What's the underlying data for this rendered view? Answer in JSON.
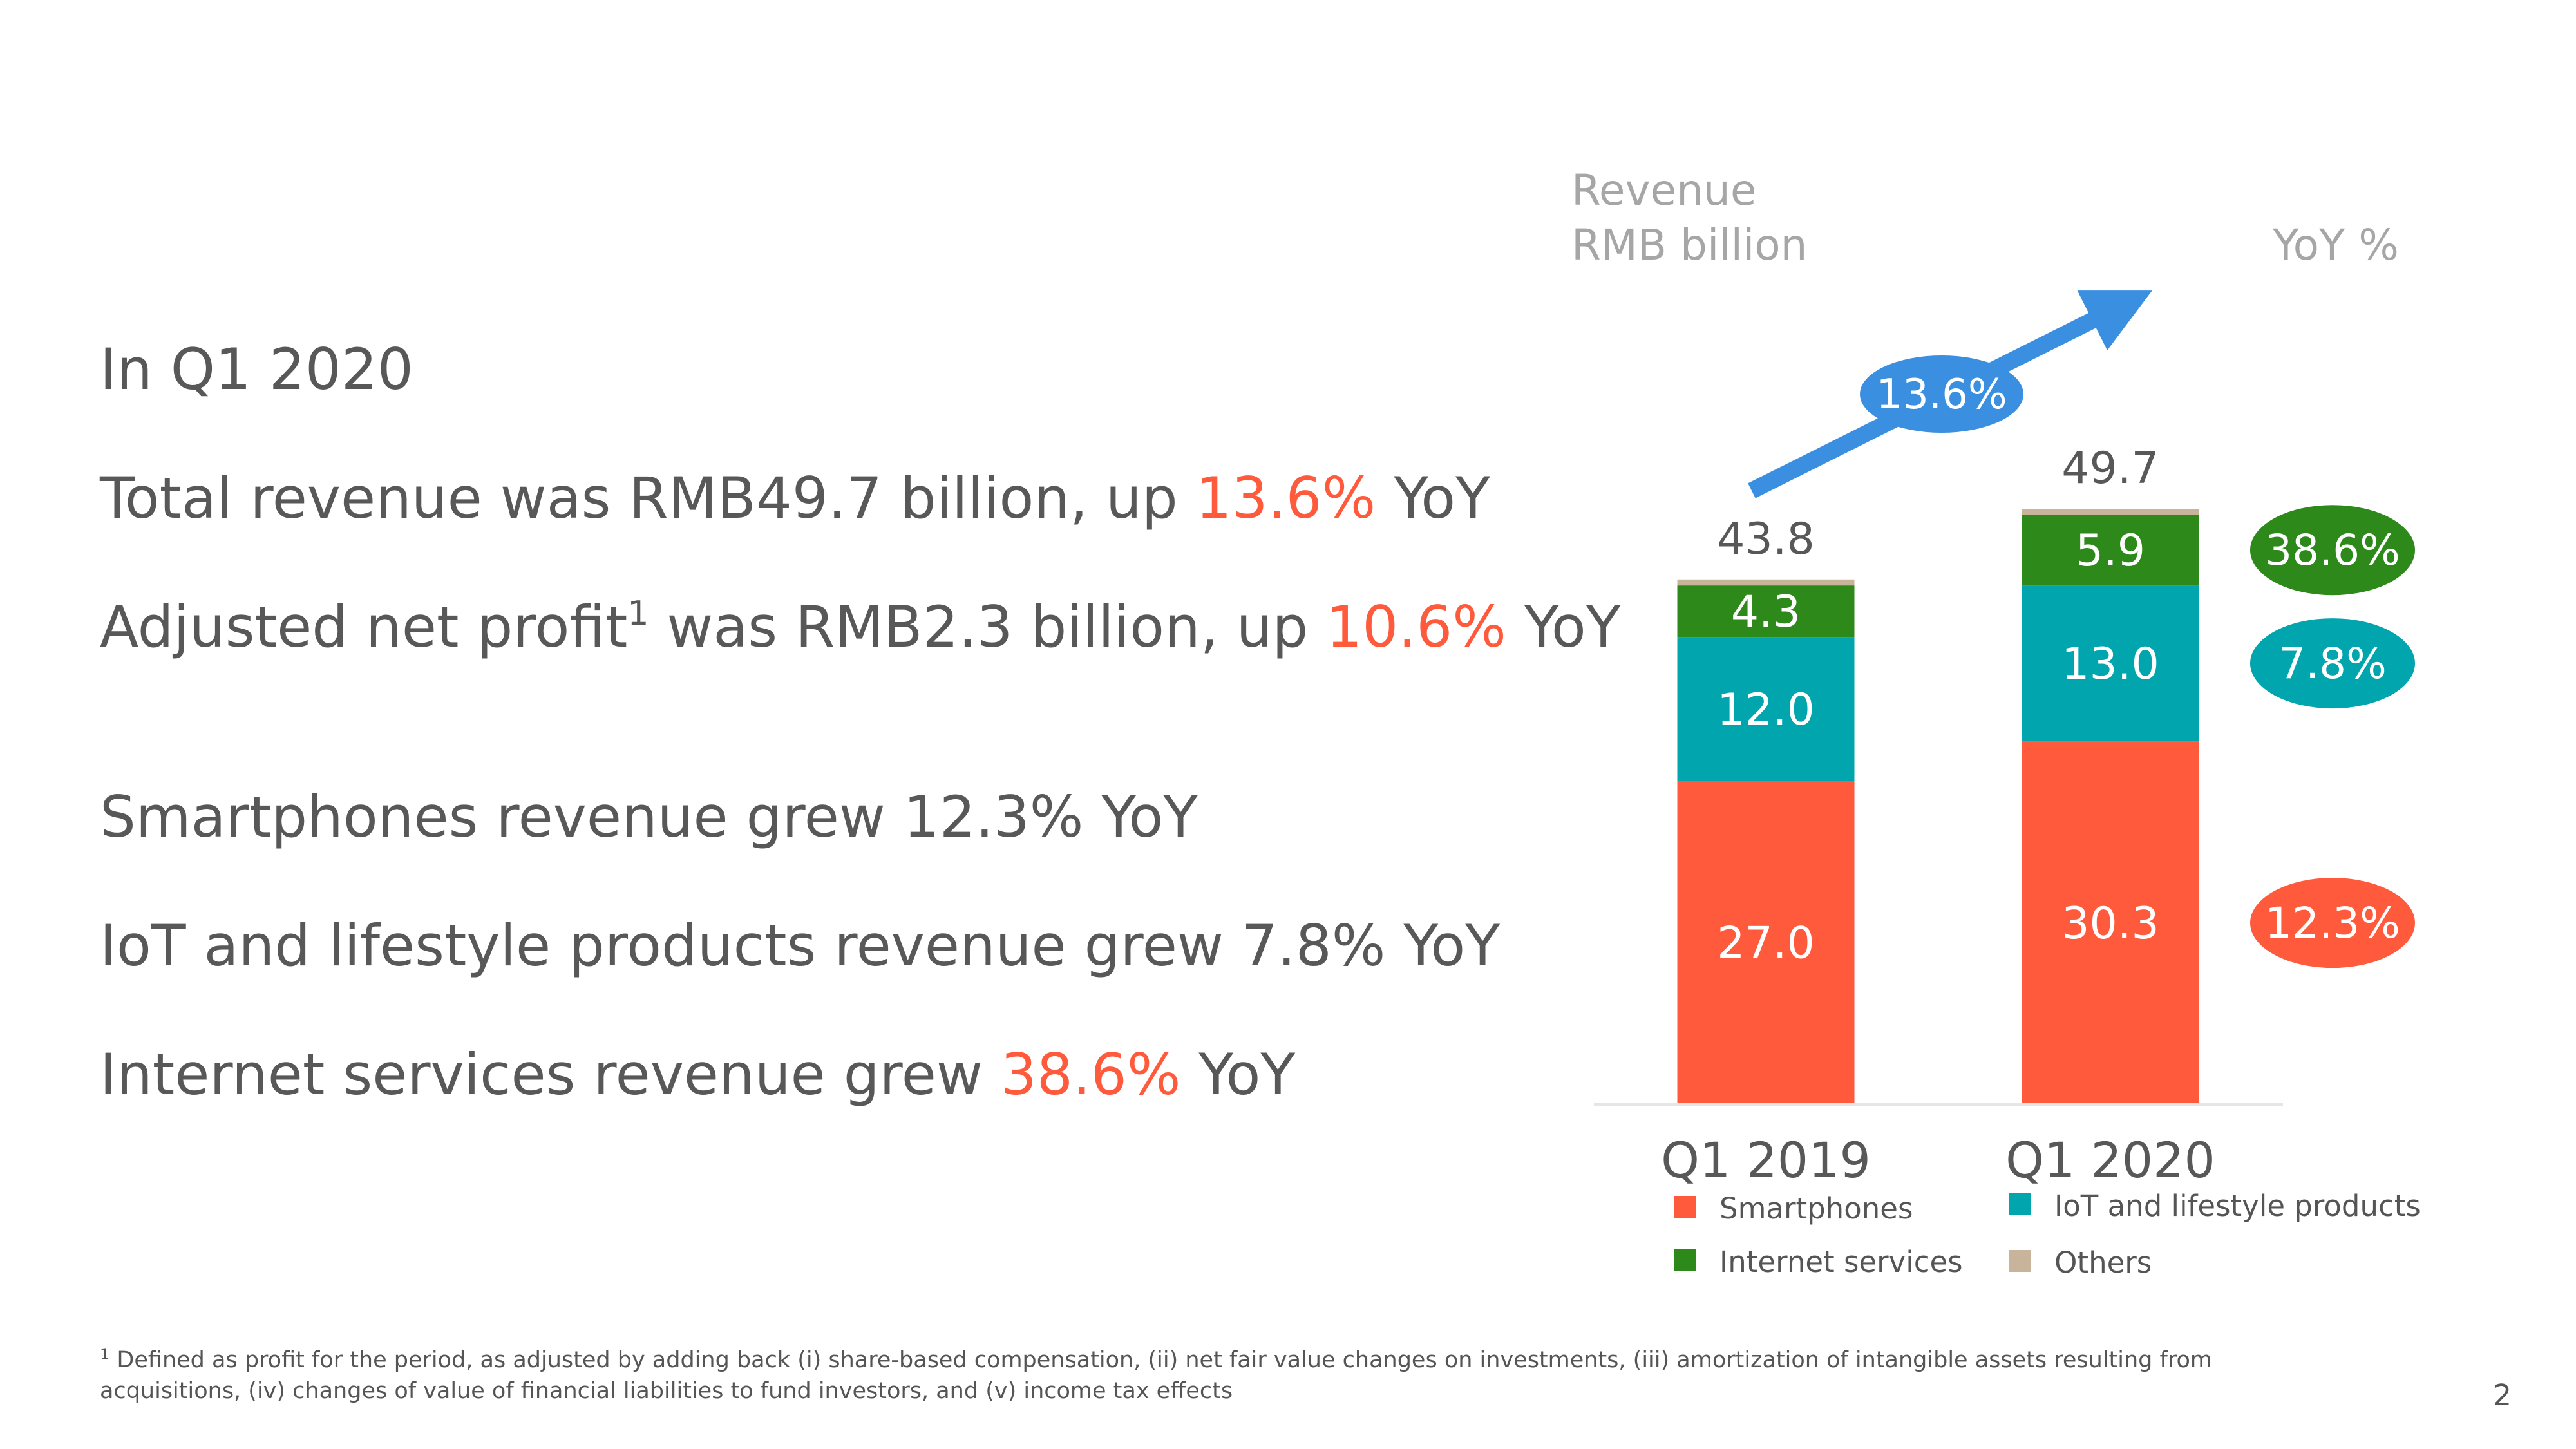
{
  "bullets": {
    "heading": "In Q1 2020",
    "total_revenue": {
      "pre": "Total revenue was RMB49.7 billion, up ",
      "hl": "13.6%",
      "post": " YoY"
    },
    "net_profit": {
      "pre": "Adjusted net profit",
      "sup": "1",
      "mid": " was RMB2.3 billion, up ",
      "hl": "10.6%",
      "post": " YoY"
    },
    "smartphones": "Smartphones revenue grew 12.3% YoY",
    "iot": "IoT and lifestyle products revenue grew 7.8% YoY",
    "internet": {
      "pre": "Internet services revenue grew ",
      "hl": "38.6%",
      "post": " YoY"
    }
  },
  "chart_data": {
    "type": "bar",
    "stacked": true,
    "axis_label_line1": "Revenue",
    "axis_label_line2": "RMB billion",
    "yoy_label": "YoY %",
    "categories": [
      "Q1 2019",
      "Q1 2020"
    ],
    "series": [
      {
        "name": "Smartphones",
        "values": [
          27.0,
          30.3
        ],
        "labels": [
          "27.0",
          "30.3"
        ],
        "color": "#ff5a3c",
        "yoy": "12.3%"
      },
      {
        "name": "IoT and lifestyle products",
        "values": [
          12.0,
          13.0
        ],
        "labels": [
          "12.0",
          "13.0"
        ],
        "color": "#00a5ae",
        "yoy": "7.8%"
      },
      {
        "name": "Internet services",
        "values": [
          4.3,
          5.9
        ],
        "labels": [
          "4.3",
          "5.9"
        ],
        "color": "#2d8a1a",
        "yoy": "38.6%"
      },
      {
        "name": "Others",
        "values": [
          0.5,
          0.5
        ],
        "labels": [
          "",
          ""
        ],
        "color": "#c8b49a"
      }
    ],
    "totals": [
      "43.8",
      "49.7"
    ],
    "total_growth": "13.6%",
    "ylim": [
      0,
      49.7
    ]
  },
  "footnote": {
    "sup": "1",
    "text": "Defined as profit for the period, as adjusted by adding back (i) share-based compensation, (ii) net fair value changes on investments, (iii) amortization of intangible assets resulting from acquisitions, (iv) changes of value of financial liabilities to fund investors, and (v) income tax effects"
  },
  "page_number": "2",
  "colors": {
    "highlight": "#ff5a3c",
    "arrow": "#3a8fe0",
    "text": "#585858",
    "muted": "#a6a6a6"
  }
}
